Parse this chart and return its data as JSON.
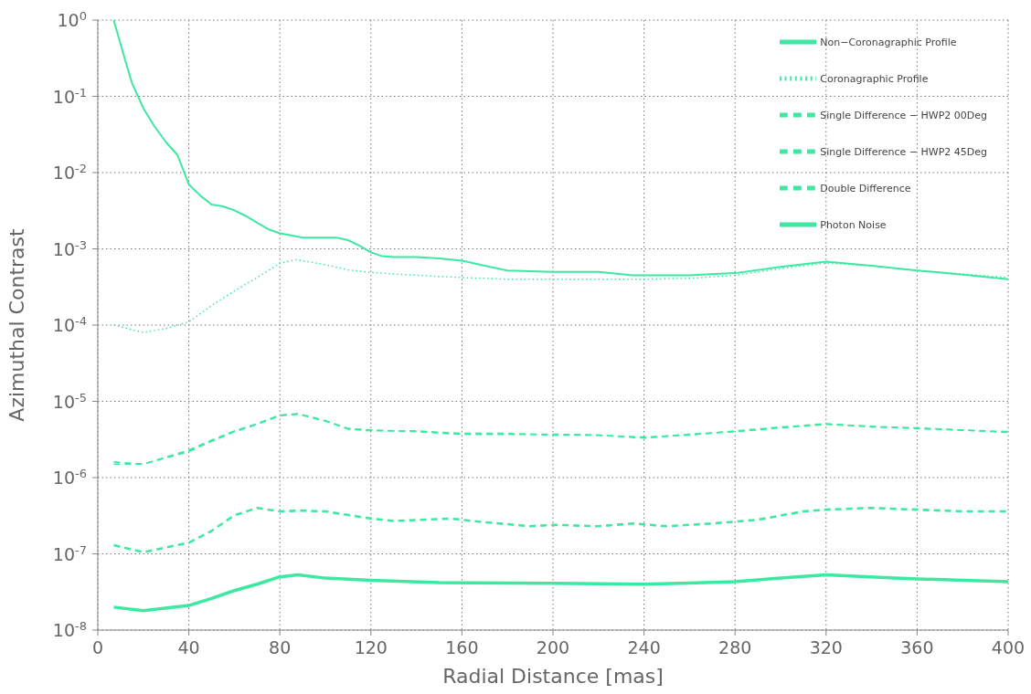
{
  "chart_data": {
    "type": "line",
    "xlabel": "Radial Distance [mas]",
    "ylabel": "Azimuthal Contrast",
    "log": "y",
    "grid": true,
    "legend": "top right",
    "xlim": [
      0,
      400
    ],
    "xticks": [
      0,
      40,
      80,
      120,
      160,
      200,
      240,
      280,
      320,
      360,
      400
    ],
    "ylim": [
      1e-08,
      1
    ],
    "yticks": [
      {
        "value": 1e-08,
        "label": "10$^{-8}$"
      },
      {
        "value": 1e-07,
        "label": "10$^{-7}$"
      },
      {
        "value": 1e-06,
        "label": "10$^{-6}$"
      },
      {
        "value": 1e-05,
        "label": "10$^{-5}$"
      },
      {
        "value": 0.0001,
        "label": "10$^{-4}$"
      },
      {
        "value": 0.001,
        "label": "10$^{-3}$"
      },
      {
        "value": 0.01,
        "label": "10$^{-2}$"
      },
      {
        "value": 0.1,
        "label": "10$^{-1}$"
      },
      {
        "value": 1,
        "label": "10$^{0}$"
      }
    ],
    "series": [
      {
        "name": "Non−Coronagraphic Profile",
        "color": "#3de8a2",
        "line_style": "solid",
        "x": [
          7,
          12,
          15,
          20,
          25,
          30,
          35,
          40,
          45,
          50,
          55,
          60,
          65,
          70,
          75,
          80,
          85,
          90,
          100,
          105,
          110,
          115,
          120,
          125,
          130,
          140,
          150,
          160,
          170,
          180,
          200,
          220,
          235,
          260,
          280,
          300,
          320,
          340,
          360,
          380,
          400
        ],
        "values": [
          1,
          0.3,
          0.15,
          0.07,
          0.04,
          0.025,
          0.017,
          0.007,
          0.005,
          0.0038,
          0.0036,
          0.0032,
          0.0027,
          0.0022,
          0.0018,
          0.0016,
          0.0015,
          0.0014,
          0.0014,
          0.0014,
          0.0013,
          0.0011,
          0.0009,
          0.0008,
          0.00078,
          0.00078,
          0.00075,
          0.0007,
          0.0006,
          0.00052,
          0.0005,
          0.0005,
          0.00045,
          0.00045,
          0.00048,
          0.00058,
          0.00068,
          0.0006,
          0.00052,
          0.00046,
          0.0004
        ]
      },
      {
        "name": "Coronagraphic Profile",
        "color": "#3de8a2",
        "line_style": "dotted",
        "x": [
          7,
          20,
          30,
          40,
          50,
          60,
          70,
          80,
          87,
          100,
          110,
          120,
          140,
          160,
          180,
          200,
          240,
          260,
          280,
          300,
          320,
          340,
          360,
          400
        ],
        "values": [
          0.0001,
          8e-05,
          9e-05,
          0.00011,
          0.00018,
          0.00028,
          0.00042,
          0.00065,
          0.00072,
          0.00062,
          0.00053,
          0.00049,
          0.00045,
          0.00042,
          0.0004,
          0.0004,
          0.0004,
          0.00041,
          0.00045,
          0.00055,
          0.00065,
          0.0006,
          0.00052,
          0.00042
        ]
      },
      {
        "name": "Single Difference − HWP2 00Deg",
        "color": "#3de8a2",
        "line_style": "dashed",
        "x": [
          7,
          20,
          40,
          50,
          60,
          70,
          80,
          88,
          100,
          110,
          120,
          140,
          160,
          180,
          200,
          220,
          240,
          260,
          280,
          300,
          320,
          340,
          360,
          400
        ],
        "values": [
          1.6e-06,
          1.5e-06,
          2.2e-06,
          3e-06,
          4e-06,
          5e-06,
          6.5e-06,
          6.8e-06,
          5.5e-06,
          4.4e-06,
          4.2e-06,
          4e-06,
          3.7e-06,
          3.7e-06,
          3.7e-06,
          3.6e-06,
          3.3e-06,
          3.7e-06,
          4e-06,
          4.5e-06,
          5e-06,
          4.7e-06,
          4.4e-06,
          4e-06
        ]
      },
      {
        "name": "Single Difference − HWP2 45Deg",
        "color": "#3de8a2",
        "line_style": "dashed",
        "x": [
          7,
          20,
          40,
          50,
          60,
          70,
          80,
          88,
          100,
          110,
          120,
          140,
          160,
          180,
          200,
          220,
          240,
          260,
          280,
          300,
          320,
          340,
          360,
          400
        ],
        "values": [
          1.5e-06,
          1.5e-06,
          2.3e-06,
          3.1e-06,
          4.1e-06,
          5.1e-06,
          6.6e-06,
          6.9e-06,
          5.6e-06,
          4.3e-06,
          4.1e-06,
          4.1e-06,
          3.8e-06,
          3.8e-06,
          3.6e-06,
          3.6e-06,
          3.4e-06,
          3.6e-06,
          4.1e-06,
          4.6e-06,
          5.1e-06,
          4.6e-06,
          4.5e-06,
          3.9e-06
        ]
      },
      {
        "name": "Double Difference",
        "color": "#3de8a2",
        "line_style": "dashed",
        "x": [
          7,
          20,
          40,
          50,
          60,
          70,
          80,
          90,
          100,
          120,
          130,
          155,
          170,
          190,
          200,
          220,
          235,
          250,
          270,
          290,
          310,
          320,
          340,
          360,
          380,
          400
        ],
        "values": [
          1.3e-07,
          1.05e-07,
          1.4e-07,
          2e-07,
          3.2e-07,
          4e-07,
          3.6e-07,
          3.7e-07,
          3.6e-07,
          2.9e-07,
          2.7e-07,
          2.9e-07,
          2.6e-07,
          2.3e-07,
          2.4e-07,
          2.3e-07,
          2.5e-07,
          2.3e-07,
          2.5e-07,
          2.8e-07,
          3.6e-07,
          3.8e-07,
          4e-07,
          3.8e-07,
          3.6e-07,
          3.6e-07
        ]
      },
      {
        "name": "Photon Noise",
        "color": "#3de8a2",
        "line_style": "solid",
        "x": [
          7,
          20,
          40,
          50,
          60,
          70,
          80,
          88,
          100,
          120,
          150,
          200,
          240,
          280,
          300,
          320,
          350,
          400
        ],
        "values": [
          2e-08,
          1.8e-08,
          2.1e-08,
          2.6e-08,
          3.3e-08,
          4e-08,
          5e-08,
          5.3e-08,
          4.8e-08,
          4.5e-08,
          4.2e-08,
          4.1e-08,
          4e-08,
          4.3e-08,
          4.8e-08,
          5.3e-08,
          4.8e-08,
          4.3e-08
        ]
      }
    ]
  }
}
